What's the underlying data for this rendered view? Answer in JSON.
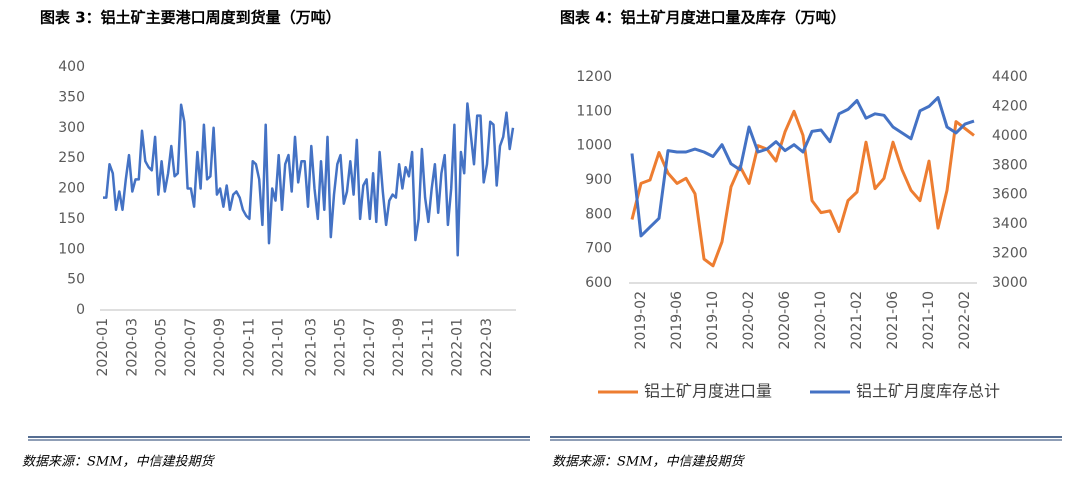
{
  "chart_data": [
    {
      "type": "line",
      "title": "图表 3：铝土矿主要港口周度到货量（万吨）",
      "categories": [
        "2020-01",
        null,
        null,
        null,
        null,
        null,
        null,
        null,
        null,
        "2020-03",
        null,
        null,
        null,
        null,
        null,
        null,
        null,
        null,
        "2020-05",
        null,
        null,
        null,
        null,
        null,
        null,
        null,
        null,
        "2020-07",
        null,
        null,
        null,
        null,
        null,
        null,
        null,
        null,
        "2020-09",
        null,
        null,
        null,
        null,
        null,
        null,
        null,
        null,
        "2020-11",
        null,
        null,
        null,
        null,
        null,
        null,
        null,
        null,
        "2021-01",
        null,
        null,
        null,
        null,
        null,
        null,
        null,
        null,
        null,
        "2021-03",
        null,
        null,
        null,
        null,
        null,
        null,
        null,
        null,
        "2021-05",
        null,
        null,
        null,
        null,
        null,
        null,
        null,
        null,
        "2021-07",
        null,
        null,
        null,
        null,
        null,
        null,
        null,
        null,
        "2021-09",
        null,
        null,
        null,
        null,
        null,
        null,
        null,
        null,
        "2021-11",
        null,
        null,
        null,
        null,
        null,
        null,
        null,
        null,
        "2022-01",
        null,
        null,
        null,
        null,
        null,
        null,
        null,
        null,
        "2022-03",
        null,
        null,
        null,
        null,
        null,
        null,
        null,
        null
      ],
      "series": [
        {
          "color": "#4472c4",
          "values": [
            185,
            185,
            240,
            225,
            165,
            195,
            165,
            215,
            255,
            195,
            215,
            215,
            295,
            245,
            235,
            230,
            285,
            190,
            245,
            195,
            225,
            270,
            220,
            225,
            338,
            310,
            200,
            200,
            170,
            260,
            200,
            305,
            215,
            220,
            300,
            190,
            200,
            170,
            205,
            165,
            190,
            195,
            185,
            165,
            155,
            150,
            245,
            240,
            215,
            140,
            305,
            110,
            200,
            180,
            255,
            165,
            240,
            255,
            195,
            285,
            210,
            245,
            245,
            170,
            270,
            200,
            150,
            245,
            165,
            285,
            120,
            190,
            240,
            255,
            175,
            195,
            245,
            190,
            280,
            150,
            205,
            215,
            150,
            225,
            145,
            260,
            195,
            140,
            180,
            190,
            185,
            240,
            200,
            235,
            220,
            260,
            115,
            150,
            265,
            185,
            145,
            200,
            240,
            160,
            225,
            255,
            140,
            200,
            305,
            90,
            260,
            225,
            340,
            290,
            240,
            320,
            320,
            210,
            240,
            310,
            305,
            205,
            270,
            285,
            325,
            265,
            300
          ]
        }
      ],
      "ylim": [
        0,
        400
      ],
      "yticks": [
        0,
        50,
        100,
        150,
        200,
        250,
        300,
        350,
        400
      ]
    },
    {
      "type": "line",
      "title": "图表 4：铝土矿月度进口量及库存（万吨）",
      "categories": [
        null,
        "2019-02",
        null,
        null,
        null,
        "2019-06",
        null,
        null,
        null,
        "2019-10",
        null,
        null,
        null,
        "2020-02",
        null,
        null,
        null,
        "2020-06",
        null,
        null,
        null,
        "2020-10",
        null,
        null,
        null,
        "2021-02",
        null,
        null,
        null,
        "2021-06",
        null,
        null,
        null,
        "2021-10",
        null,
        null,
        null,
        "2022-02",
        null
      ],
      "series": [
        {
          "name": "铝土矿月度进口量",
          "color": "#ed7d31",
          "values": [
            785,
            890,
            900,
            980,
            920,
            890,
            905,
            860,
            670,
            650,
            720,
            880,
            940,
            890,
            1000,
            990,
            955,
            1040,
            1100,
            1030,
            840,
            805,
            810,
            750,
            840,
            865,
            1010,
            875,
            905,
            1010,
            930,
            870,
            840,
            955,
            760,
            870,
            1070,
            1050,
            1030
          ]
        },
        {
          "name": "铝土矿月度库存总计",
          "color": "#4472c4",
          "axis": "y2",
          "values": [
            3880,
            3320,
            3380,
            3440,
            3900,
            3890,
            3890,
            3910,
            3890,
            3860,
            3940,
            3810,
            3770,
            4060,
            3890,
            3910,
            3960,
            3900,
            3940,
            3890,
            4030,
            4040,
            3960,
            4150,
            4180,
            4240,
            4120,
            4150,
            4140,
            4060,
            4020,
            3980,
            4170,
            4200,
            4260,
            4060,
            4020,
            4080,
            4100
          ]
        }
      ],
      "ylim": [
        600,
        1200
      ],
      "yticks": [
        600,
        700,
        800,
        900,
        1000,
        1100,
        1200
      ],
      "y2lim": [
        3000,
        4400
      ],
      "y2ticks": [
        3000,
        3200,
        3400,
        3600,
        3800,
        4000,
        4200,
        4400
      ],
      "legend": "bottom"
    }
  ],
  "sources": [
    "数据来源：SMM，中信建投期货",
    "数据来源：SMM，中信建投期货"
  ]
}
